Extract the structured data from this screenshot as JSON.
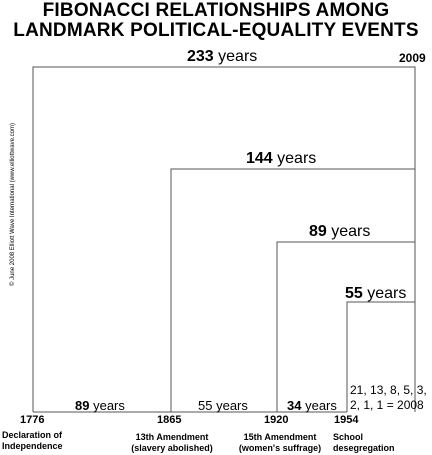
{
  "title": {
    "line1": "FIBONACCI RELATIONSHIPS AMONG",
    "line2": "LANDMARK POLITICAL-EQUALITY EVENTS"
  },
  "credit": "© June 2008 Elliott Wave International (www.elliottwave.com)",
  "end_year": "2009",
  "spans": [
    {
      "number": "233",
      "unit": "years"
    },
    {
      "number": "144",
      "unit": "years"
    },
    {
      "number": "89",
      "unit": "years"
    },
    {
      "number": "55",
      "unit": "years"
    }
  ],
  "intervals": [
    {
      "number": "89",
      "unit": "years"
    },
    {
      "number": "55",
      "unit": "years"
    },
    {
      "number": "34",
      "unit": "years"
    }
  ],
  "events": [
    {
      "year": "1776",
      "caption_line1": "Declaration of",
      "caption_line2": "Independence"
    },
    {
      "year": "1865",
      "caption_line1": "13th Amendment",
      "caption_line2": "(slavery abolished)"
    },
    {
      "year": "1920",
      "caption_line1": "15th Amendment",
      "caption_line2": "(women's suffrage)"
    },
    {
      "year": "1954",
      "caption_line1": "School",
      "caption_line2": "desegregation"
    }
  ],
  "fibonacci_note": {
    "line1": "21, 13, 8, 5, 3,",
    "line2": "2, 1, 1 = 2008"
  }
}
